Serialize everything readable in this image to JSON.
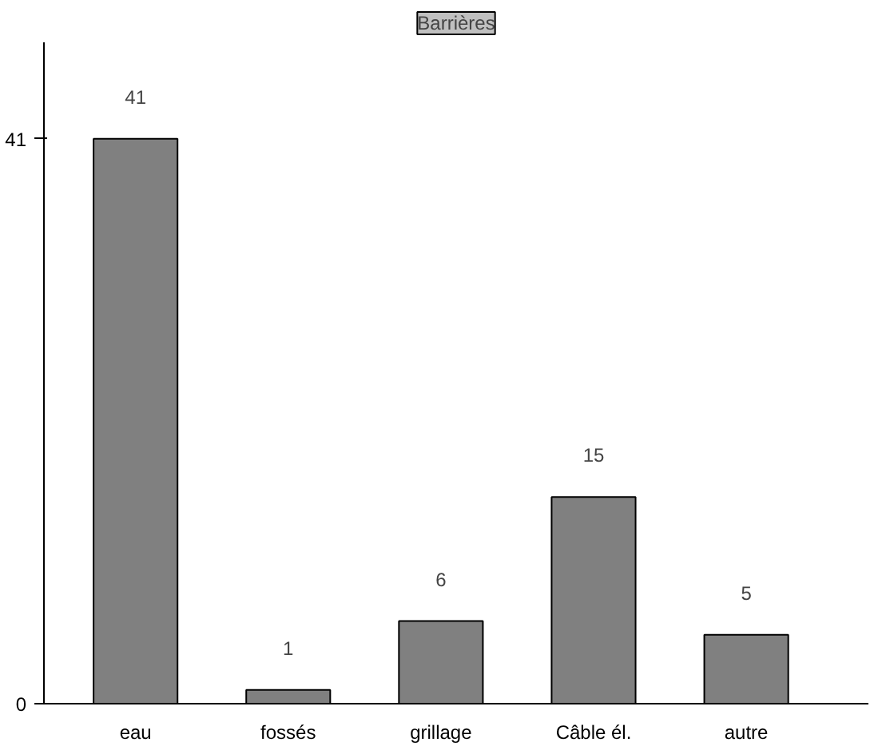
{
  "chart_data": {
    "type": "bar",
    "title": "Barrières",
    "categories": [
      "eau",
      "fossés",
      "grillage",
      "Câble él.",
      "autre"
    ],
    "values": [
      41,
      1,
      6,
      15,
      5
    ],
    "color": "#808080",
    "ylim": [
      0,
      48
    ],
    "yticks": [
      0,
      41
    ],
    "data_labels": true
  }
}
